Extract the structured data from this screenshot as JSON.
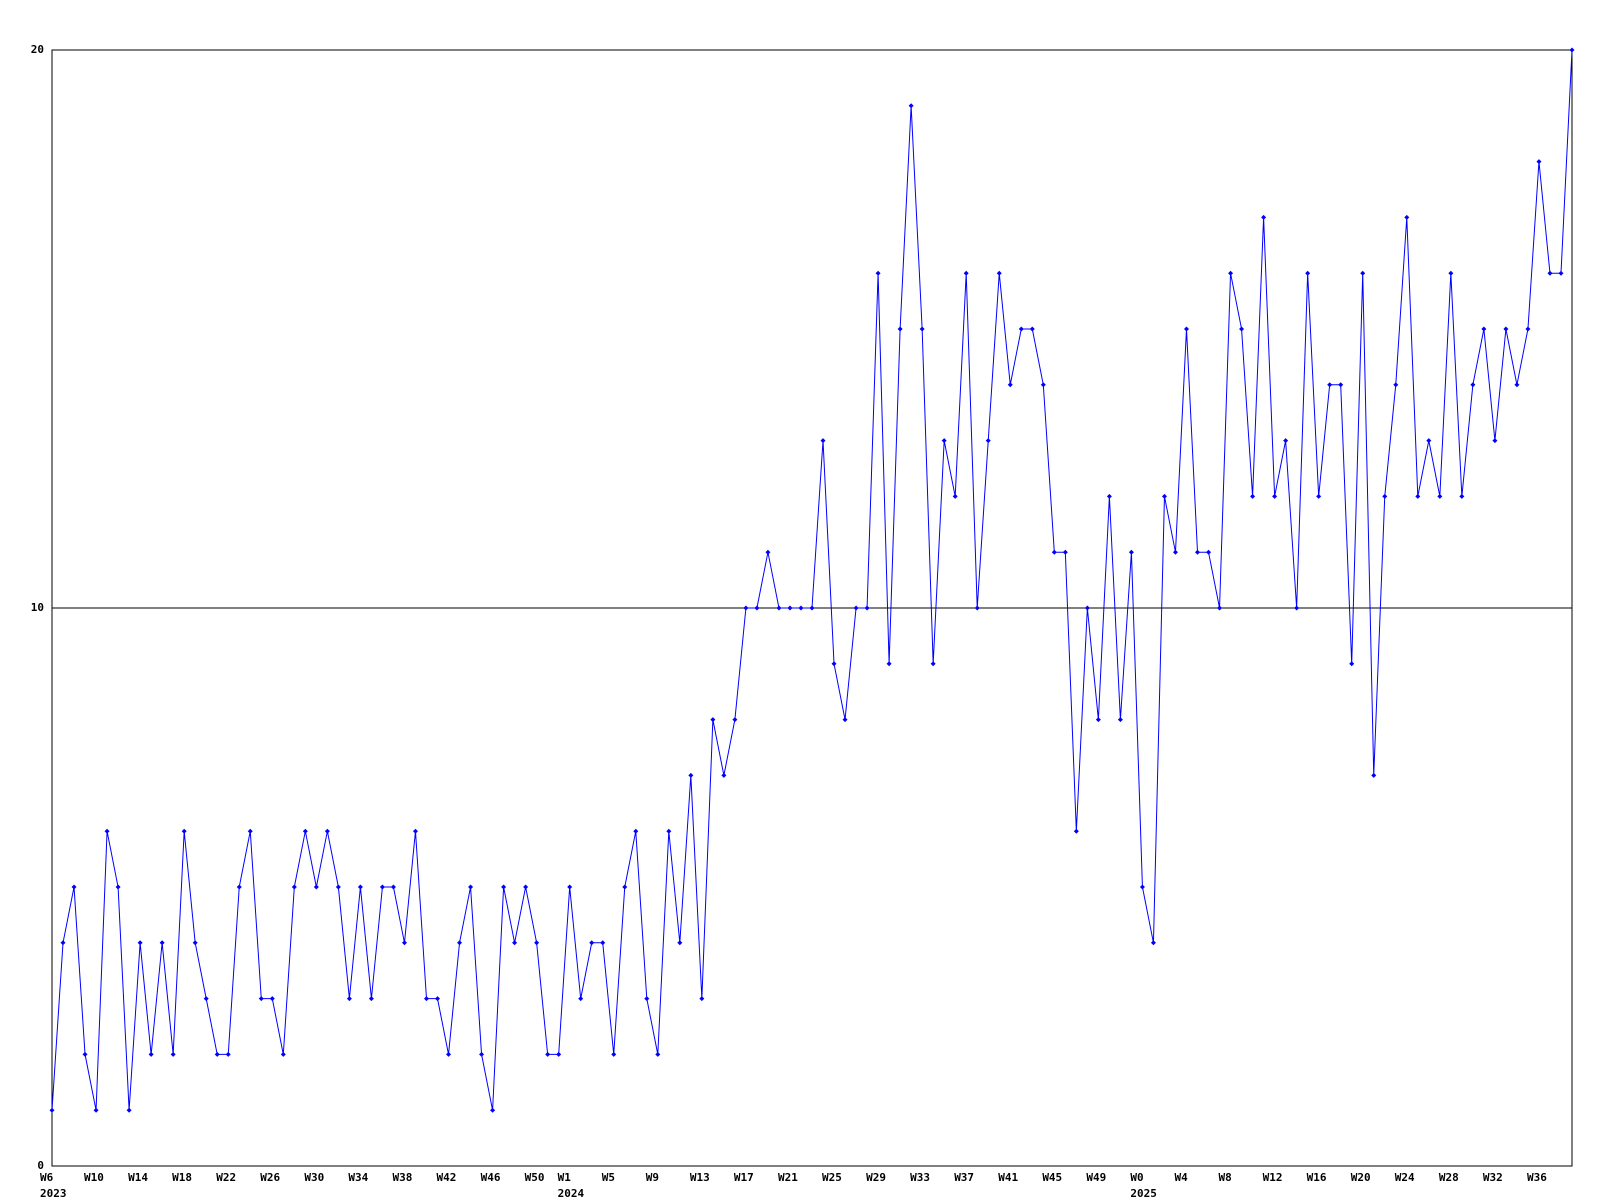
{
  "chart_data": {
    "type": "line",
    "categories": [
      "W6",
      null,
      null,
      null,
      "W10",
      null,
      null,
      null,
      "W14",
      null,
      null,
      null,
      "W18",
      null,
      null,
      null,
      "W22",
      null,
      null,
      null,
      "W26",
      null,
      null,
      null,
      "W30",
      null,
      null,
      null,
      "W34",
      null,
      null,
      null,
      "W38",
      null,
      null,
      null,
      "W42",
      null,
      null,
      null,
      "W46",
      null,
      null,
      null,
      "W50",
      null,
      null,
      "W1",
      null,
      null,
      null,
      "W5",
      null,
      null,
      null,
      "W9",
      null,
      null,
      null,
      "W13",
      null,
      null,
      null,
      "W17",
      null,
      null,
      null,
      "W21",
      null,
      null,
      null,
      "W25",
      null,
      null,
      null,
      "W29",
      null,
      null,
      null,
      "W33",
      null,
      null,
      null,
      "W37",
      null,
      null,
      null,
      "W41",
      null,
      null,
      null,
      "W45",
      null,
      null,
      null,
      "W49",
      null,
      null,
      null,
      "W0",
      null,
      null,
      null,
      "W4",
      null,
      null,
      null,
      "W8",
      null,
      null,
      null,
      "W12",
      null,
      null,
      null,
      "W16",
      null,
      null,
      null,
      "W20",
      null,
      null,
      null,
      "W24",
      null,
      null,
      null,
      "W28",
      null,
      null,
      null,
      "W32",
      null,
      null,
      null,
      "W36",
      null,
      null,
      null
    ],
    "category_years": [
      "2023",
      null,
      null,
      null,
      null,
      null,
      null,
      null,
      null,
      null,
      null,
      null,
      null,
      null,
      null,
      null,
      null,
      null,
      null,
      null,
      null,
      null,
      null,
      null,
      null,
      null,
      null,
      null,
      null,
      null,
      null,
      null,
      null,
      null,
      null,
      null,
      null,
      null,
      null,
      null,
      null,
      null,
      null,
      null,
      null,
      null,
      null,
      "2024",
      null,
      null,
      null,
      null,
      null,
      null,
      null,
      null,
      null,
      null,
      null,
      null,
      null,
      null,
      null,
      null,
      null,
      null,
      null,
      null,
      null,
      null,
      null,
      null,
      null,
      null,
      null,
      null,
      null,
      null,
      null,
      null,
      null,
      null,
      null,
      null,
      null,
      null,
      null,
      null,
      null,
      null,
      null,
      null,
      null,
      null,
      null,
      null,
      null,
      null,
      null,
      "2025",
      null,
      null,
      null,
      null,
      null,
      null,
      null,
      null,
      null,
      null,
      null,
      null,
      null,
      null,
      null,
      null,
      null,
      null,
      null,
      null,
      null,
      null,
      null,
      null,
      null,
      null,
      null,
      null,
      null,
      null,
      null,
      null,
      null,
      null,
      null,
      null,
      null,
      null,
      null
    ],
    "series": [
      {
        "color": "#0000ff",
        "values": [
          1,
          4,
          5,
          2,
          1,
          6,
          5,
          1,
          4,
          2,
          4,
          2,
          6,
          4,
          3,
          2,
          2,
          5,
          6,
          3,
          3,
          2,
          5,
          6,
          5,
          6,
          5,
          3,
          5,
          3,
          5,
          5,
          4,
          6,
          3,
          3,
          2,
          4,
          5,
          2,
          1,
          5,
          4,
          5,
          4,
          2,
          2,
          5,
          3,
          4,
          4,
          2,
          5,
          6,
          3,
          2,
          6,
          4,
          7,
          3,
          8,
          7,
          8,
          10,
          10,
          11,
          10,
          10,
          10,
          10,
          13,
          9,
          8,
          10,
          10,
          16,
          9,
          15,
          19,
          15,
          9,
          13,
          12,
          16,
          10,
          13,
          16,
          14,
          15,
          15,
          14,
          11,
          11,
          6,
          10,
          8,
          12,
          8,
          11,
          5,
          4,
          12,
          11,
          15,
          11,
          11,
          10,
          16,
          15,
          12,
          17,
          12,
          13,
          10,
          16,
          12,
          14,
          14,
          9,
          16,
          7,
          12,
          14,
          17,
          12,
          13,
          12,
          16,
          12,
          14,
          15,
          13,
          15,
          14,
          15,
          18,
          16,
          16,
          20
        ]
      }
    ],
    "ylim": [
      0,
      20
    ],
    "yticks": [
      0,
      10,
      20
    ],
    "grid": true
  }
}
